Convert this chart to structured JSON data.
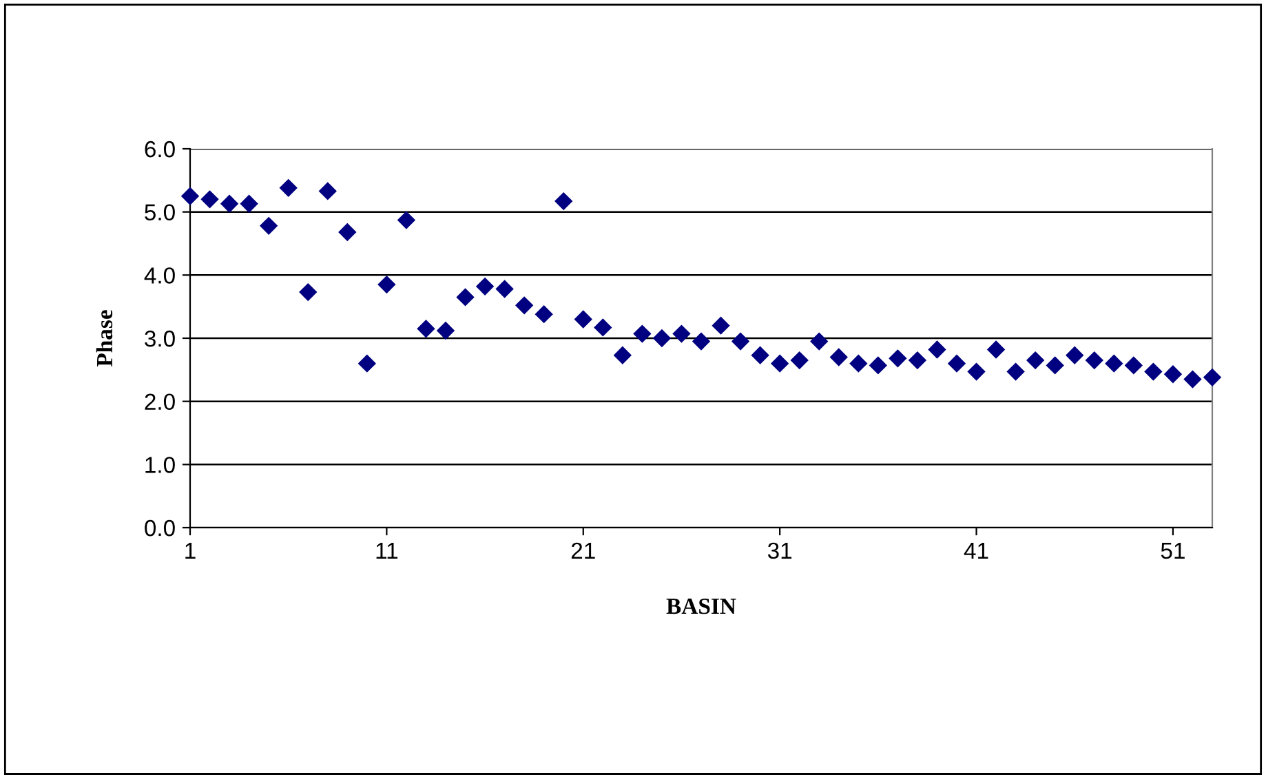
{
  "chart_data": {
    "type": "scatter",
    "xlabel": "BASIN",
    "ylabel": "Phase",
    "x": [
      1,
      2,
      3,
      4,
      5,
      6,
      7,
      8,
      9,
      10,
      11,
      12,
      13,
      14,
      15,
      16,
      17,
      18,
      19,
      20,
      21,
      22,
      23,
      24,
      25,
      26,
      27,
      28,
      29,
      30,
      31,
      32,
      33,
      34,
      35,
      36,
      37,
      38,
      39,
      40,
      41,
      42,
      43,
      44,
      45,
      46,
      47,
      48,
      49,
      50,
      51,
      52,
      53
    ],
    "series": [
      {
        "color": "#000080",
        "values": [
          5.25,
          5.2,
          5.13,
          5.13,
          4.78,
          5.38,
          3.73,
          5.33,
          4.68,
          2.6,
          3.85,
          4.87,
          3.15,
          3.12,
          3.65,
          3.82,
          3.78,
          3.52,
          3.38,
          5.17,
          3.3,
          3.17,
          2.73,
          3.07,
          3.0,
          3.07,
          2.95,
          3.2,
          2.95,
          2.73,
          2.6,
          2.65,
          2.95,
          2.7,
          2.6,
          2.57,
          2.68,
          2.65,
          2.82,
          2.6,
          2.47,
          2.82,
          2.47,
          2.65,
          2.57,
          2.73,
          2.65,
          2.6,
          2.57,
          2.47,
          2.43,
          2.35,
          2.38
        ]
      }
    ],
    "xlim": [
      1,
      53
    ],
    "xticks": [
      1,
      11,
      21,
      31,
      41,
      51
    ],
    "ylim": [
      0,
      6
    ],
    "yticks": [
      {
        "value": 0,
        "label": "0.0"
      },
      {
        "value": 1,
        "label": "1.0"
      },
      {
        "value": 2,
        "label": "2.0"
      },
      {
        "value": 3,
        "label": "3.0"
      },
      {
        "value": 4,
        "label": "4.0"
      },
      {
        "value": 5,
        "label": "5.0"
      },
      {
        "value": 6,
        "label": "6.0"
      }
    ],
    "grid": "y",
    "marker": "diamond",
    "legend": false
  }
}
